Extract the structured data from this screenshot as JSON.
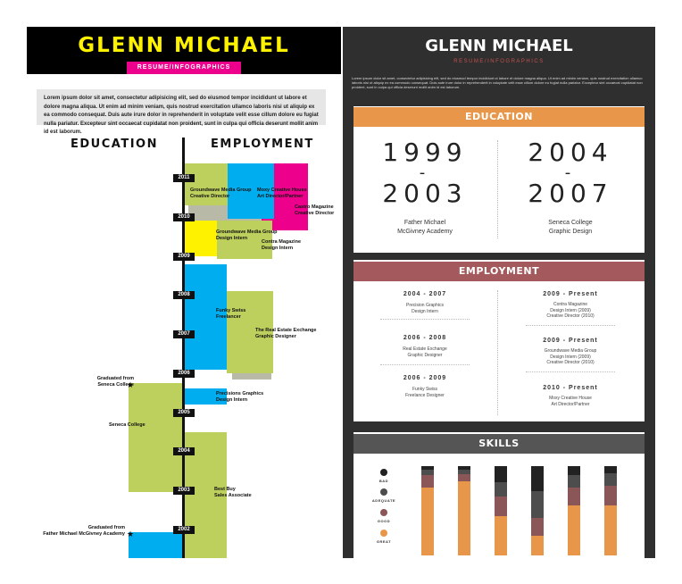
{
  "left": {
    "name": "GLENN MICHAEL",
    "ribbon": "RESUME/INFOGRAPHICS",
    "intro": "Lorem ipsum dolor sit amet, consectetur adipisicing elit, sed do eiusmod tempor incididunt ut labore et dolore magna aliqua. Ut enim ad minim veniam, quis nostrud exercitation ullamco laboris nisi ut aliquip ex ea commodo consequat. Duis aute irure dolor in reprehenderit in voluptate velit esse cillum dolore eu fugiat nulla pariatur. Excepteur sint occaecat cupidatat non proident, sunt in culpa qui officia deserunt mollit anim id est laborum.",
    "education_heading": "EDUCATION",
    "employment_heading": "EMPLOYMENT",
    "years": [
      "2011",
      "2010",
      "2009",
      "2008",
      "2007",
      "2006",
      "2005",
      "2004",
      "2003",
      "2002"
    ],
    "employment_labels": [
      "Groundwave Media Group\nCreative Director",
      "Moxy Creative House\nArt Director/Partner",
      "Castro Magazine\nCreative Director",
      "Groundwave Media Group\nDesign Intern",
      "Contra Magazine\nDesign Intern",
      "Funky Swiss\nFreelancer",
      "The Real Estate Exchange\nGraphic Designer",
      "Precisions Graphics\nDesign Intern",
      "Best Buy\nSales Associate"
    ],
    "education_labels": [
      "Graduated from\nSeneca College",
      "Seneca College",
      "Graduated from\nFather Michael McGivney Academy"
    ],
    "star": "★",
    "colors": {
      "lime": "#bdd05e",
      "cyan": "#00aeef",
      "magenta": "#ec008c",
      "yellow": "#fff200"
    }
  },
  "right": {
    "name": "GLENN MICHAEL",
    "subtitle": "RESUME/INFOGRAPHICS",
    "intro": "Lorem ipsum dolor sit amet, consectetur adipisicing elit, sed do eiusmod tempor incididunt ut labore et dolore magna aliqua. Ut enim ad minim veniam, quis nostrud exercitation ullamco laboris nisi ut aliquip ex ea commodo consequat. Duis aute irure dolor in reprehenderit in voluptate velit esse cillum dolore eu fugiat nulla pariatur. Excepteur sint occaecat cupidatat non proident, sunt in culpa qui officia deserunt mollit anim id est laborum.",
    "education": {
      "title": "EDUCATION",
      "color": "#e8974a",
      "items": [
        {
          "start": "1999",
          "dash": "-",
          "end": "2003",
          "school": "Father Michael\nMcGivney Academy"
        },
        {
          "start": "2004",
          "dash": "-",
          "end": "2007",
          "school": "Seneca College\nGraphic Design"
        }
      ]
    },
    "employment": {
      "title": "EMPLOYMENT",
      "color": "#a45a5c",
      "left": [
        {
          "date": "2004 - 2007",
          "detail": "Precision Graphics\nDesign Intern"
        },
        {
          "date": "2006 - 2008",
          "detail": "Real Estate Exchange\nGraphic Designer"
        },
        {
          "date": "2006 - 2009",
          "detail": "Funky Swiss\nFreelance Designer"
        }
      ],
      "right": [
        {
          "date": "2009 - Present",
          "detail": "Contra Magazine\nDesign Intern (2009)\nCreative Director (2010)"
        },
        {
          "date": "2009 - Present",
          "detail": "Groundwave Media Group\nDesign Intern (2009)\nCreative Director (2010)"
        },
        {
          "date": "2010 - Present",
          "detail": "Moxy Creative House\nArt Director/Partner"
        }
      ]
    },
    "skills": {
      "title": "SKILLS",
      "color": "#555555",
      "legend": [
        {
          "label": "BAD",
          "color": "#222222"
        },
        {
          "label": "ADEQUATE",
          "color": "#4d4d4d"
        },
        {
          "label": "GOOD",
          "color": "#8b5658"
        },
        {
          "label": "GREAT",
          "color": "#e8974a"
        }
      ]
    }
  }
}
